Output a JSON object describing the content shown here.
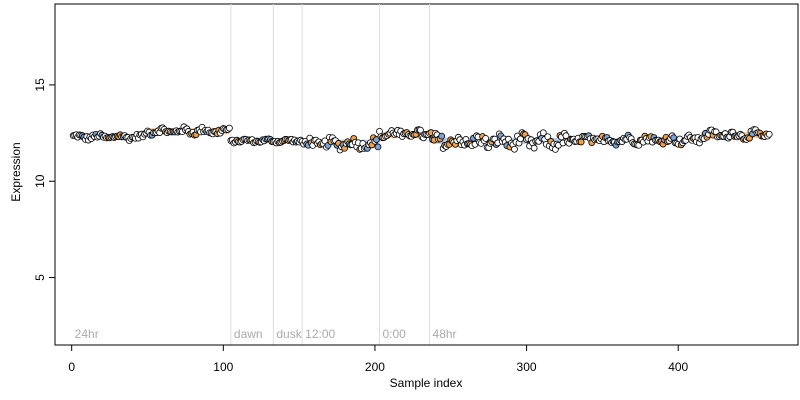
{
  "chart_data": {
    "type": "scatter",
    "title": "",
    "xlabel": "Sample index",
    "ylabel": "Expression",
    "xlim": [
      -11,
      479
    ],
    "ylim": [
      1.5,
      19.2
    ],
    "xticks": [
      0,
      100,
      200,
      300,
      400
    ],
    "yticks": [
      5,
      10,
      15
    ],
    "grid": false,
    "legend": "none",
    "colors": {
      "point_edge": "#000000",
      "point_fill_default": "#ffffff",
      "high": "#f0a04b",
      "low": "#7ba3d8",
      "divider": "#dddddd",
      "annotation_text": "#aaaaaa"
    },
    "segment_markers": [
      {
        "x": 0,
        "label": "24hr",
        "line": false
      },
      {
        "x": 105,
        "label": "dawn",
        "line": true
      },
      {
        "x": 133,
        "label": "dusk",
        "line": true
      },
      {
        "x": 152,
        "label": "12:00",
        "line": true
      },
      {
        "x": 203,
        "label": "0:00",
        "line": true
      },
      {
        "x": 236,
        "label": "48hr",
        "line": true
      }
    ],
    "bands": [
      {
        "x0": 2,
        "x1": 48,
        "y": 12.3,
        "color": "low"
      },
      {
        "x0": 49,
        "x1": 104,
        "y": 12.6,
        "color": "high"
      },
      {
        "x0": 154,
        "x1": 202,
        "y": 12.0,
        "color": "low"
      },
      {
        "x0": 203,
        "x1": 237,
        "y": 12.4,
        "color": "high"
      },
      {
        "x0": 238,
        "x1": 330,
        "y": 12.1,
        "color": "low"
      },
      {
        "x0": 415,
        "x1": 460,
        "y": 12.4,
        "color": "high"
      }
    ],
    "segments": [
      {
        "x_start": 1,
        "x_end": 48,
        "mean": 12.3,
        "amp": 0.12
      },
      {
        "x_start": 49,
        "x_end": 104,
        "mean": 12.6,
        "amp": 0.15
      },
      {
        "x_start": 105,
        "x_end": 152,
        "mean": 12.1,
        "amp": 0.08
      },
      {
        "x_start": 153,
        "x_end": 202,
        "mean": 11.95,
        "amp": 0.22
      },
      {
        "x_start": 203,
        "x_end": 237,
        "mean": 12.45,
        "amp": 0.2
      },
      {
        "x_start": 238,
        "x_end": 330,
        "mean": 12.05,
        "amp": 0.3
      },
      {
        "x_start": 331,
        "x_end": 414,
        "mean": 12.15,
        "amp": 0.18
      },
      {
        "x_start": 415,
        "x_end": 460,
        "mean": 12.4,
        "amp": 0.18
      }
    ]
  }
}
